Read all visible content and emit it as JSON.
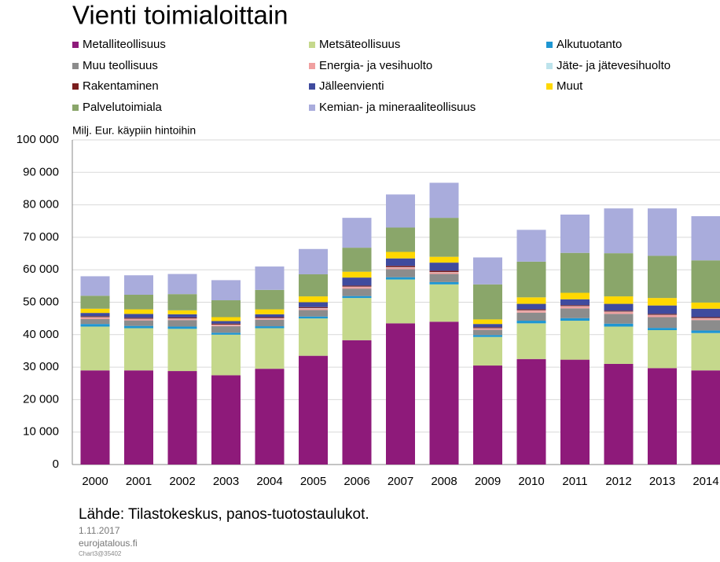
{
  "chart_data": {
    "type": "stacked_bar",
    "title": "Vienti toimialoittain",
    "y_axis_label": "Milj. Eur. käypiin hintoihin",
    "source": "Lähde: Tilastokeskus, panos-tuotostaulukot.",
    "footer": [
      "1.11.2017",
      "eurojatalous.fi",
      "Chart3@35402"
    ],
    "categories": [
      "2000",
      "2001",
      "2002",
      "2003",
      "2004",
      "2005",
      "2006",
      "2007",
      "2008",
      "2009",
      "2010",
      "2011",
      "2012",
      "2013",
      "2014"
    ],
    "ylim": [
      0,
      100000
    ],
    "yticks": [
      0,
      {
        "value": 10000,
        "label": "10 000"
      },
      {
        "value": 20000,
        "label": "20 000"
      },
      {
        "value": 30000,
        "label": "30 000"
      },
      {
        "value": 40000,
        "label": "40 000"
      },
      {
        "value": 50000,
        "label": "50 000"
      },
      {
        "value": 60000,
        "label": "60 000"
      },
      {
        "value": 70000,
        "label": "70 000"
      },
      {
        "value": 80000,
        "label": "80 000"
      },
      {
        "value": 90000,
        "label": "90 000"
      },
      {
        "value": 100000,
        "label": "100 000"
      }
    ],
    "grid": true,
    "series": [
      {
        "name": "Metalliteollisuus",
        "color": "#8e1a7a",
        "values": [
          29000,
          29000,
          28800,
          27500,
          29500,
          33500,
          38300,
          43500,
          44000,
          30500,
          32500,
          32300,
          31000,
          29700,
          29000
        ]
      },
      {
        "name": "Metsäteollisuus",
        "color": "#c5d88c",
        "values": [
          13500,
          13000,
          13000,
          12500,
          12500,
          11500,
          13000,
          13500,
          11500,
          8800,
          11000,
          12000,
          11500,
          11700,
          11500
        ]
      },
      {
        "name": "Alkutuotanto",
        "color": "#1e96d2",
        "values": [
          800,
          700,
          700,
          600,
          600,
          600,
          600,
          700,
          700,
          600,
          800,
          800,
          900,
          700,
          800
        ]
      },
      {
        "name": "Muu teollisuus",
        "color": "#8c8c8c",
        "values": [
          1500,
          1700,
          2000,
          2000,
          2000,
          2000,
          2300,
          2500,
          2500,
          1600,
          2500,
          3000,
          3000,
          3300,
          3200
        ]
      },
      {
        "name": "Energia- ja vesihuolto",
        "color": "#f0a0a0",
        "values": [
          500,
          400,
          400,
          400,
          400,
          500,
          500,
          500,
          500,
          400,
          600,
          600,
          600,
          600,
          500
        ]
      },
      {
        "name": "Jäte- ja jätevesihuolto",
        "color": "#bde3ec",
        "values": [
          100,
          100,
          100,
          100,
          100,
          100,
          100,
          100,
          100,
          100,
          100,
          100,
          100,
          100,
          100
        ]
      },
      {
        "name": "Rakentaminen",
        "color": "#7a1e1e",
        "values": [
          300,
          300,
          300,
          300,
          300,
          300,
          300,
          400,
          400,
          300,
          300,
          300,
          300,
          300,
          300
        ]
      },
      {
        "name": "Jälleenvienti",
        "color": "#3f4b9e",
        "values": [
          1000,
          1200,
          1000,
          800,
          900,
          1500,
          2500,
          2300,
          2500,
          1000,
          1700,
          1800,
          2100,
          2600,
          2600
        ]
      },
      {
        "name": "Muut",
        "color": "#ffd800",
        "values": [
          1300,
          1400,
          1200,
          1200,
          1500,
          1800,
          1800,
          2000,
          1800,
          1400,
          2000,
          2000,
          2300,
          2300,
          1900
        ]
      },
      {
        "name": "Palvelutoimiala",
        "color": "#8aa66a",
        "values": [
          4000,
          4500,
          5000,
          5200,
          6000,
          6800,
          7400,
          7500,
          12000,
          10800,
          11000,
          12300,
          13300,
          13000,
          13000
        ]
      },
      {
        "name": "Kemian- ja mineraaliteollisuus",
        "color": "#a9acdc",
        "values": [
          6000,
          6000,
          6200,
          6200,
          7200,
          7800,
          9200,
          10200,
          10800,
          8300,
          9800,
          11800,
          13800,
          14600,
          13600
        ]
      }
    ]
  }
}
